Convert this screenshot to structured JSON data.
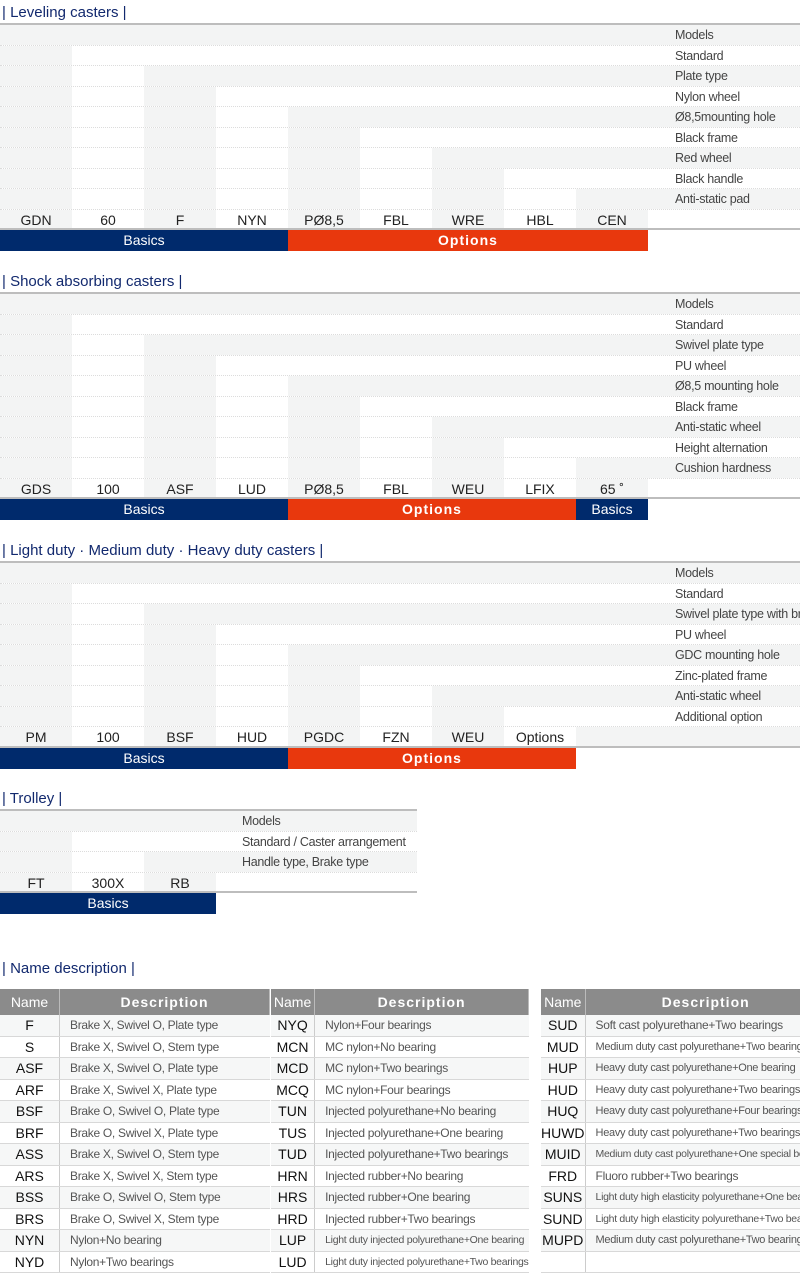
{
  "colors": {
    "basics": "#002a6c",
    "options": "#e8380d",
    "title": "#12296e",
    "shade": "#f3f4f4"
  },
  "sections": [
    {
      "title": "| Leveling casters |",
      "codes": [
        "GDN",
        "60",
        "F",
        "NYN",
        "PØ8,5",
        "FBL",
        "WRE",
        "HBL",
        "CEN"
      ],
      "labels": [
        "Models",
        "Standard",
        "Plate type",
        "Nylon wheel",
        "Ø8,5mounting hole",
        "Black frame",
        "Red wheel",
        "Black handle",
        "Anti-static pad"
      ],
      "bands": [
        {
          "label": "Basics",
          "type": "basics",
          "cols": 4
        },
        {
          "label": "Options",
          "type": "options",
          "cols": 5
        }
      ]
    },
    {
      "title": "| Shock absorbing casters |",
      "codes": [
        "GDS",
        "100",
        "ASF",
        "LUD",
        "PØ8,5",
        "FBL",
        "WEU",
        "LFIX",
        "65 ˚"
      ],
      "labels": [
        "Models",
        "Standard",
        "Swivel plate type",
        "PU wheel",
        "Ø8,5 mounting hole",
        "Black frame",
        "Anti-static wheel",
        "Height alternation",
        "Cushion hardness"
      ],
      "bands": [
        {
          "label": "Basics",
          "type": "basics",
          "cols": 4
        },
        {
          "label": "Options",
          "type": "options",
          "cols": 4
        },
        {
          "label": "Basics",
          "type": "basics",
          "cols": 1
        }
      ]
    },
    {
      "title": "| Light duty · Medium duty · Heavy duty casters |",
      "codes": [
        "PM",
        "100",
        "BSF",
        "HUD",
        "PGDC",
        "FZN",
        "WEU",
        "Options"
      ],
      "labels": [
        "Models",
        "Standard",
        "Swivel plate type with brake",
        "PU wheel",
        "GDC mounting hole",
        "Zinc-plated frame",
        "Anti-static wheel",
        "Additional option"
      ],
      "bands": [
        {
          "label": "Basics",
          "type": "basics",
          "cols": 4
        },
        {
          "label": "Options",
          "type": "options",
          "cols": 4
        }
      ]
    },
    {
      "title": "| Trolley |",
      "codes": [
        "FT",
        "300X",
        "RB"
      ],
      "labels": [
        "Models",
        "Standard / Caster arrangement",
        "Handle type, Brake type"
      ],
      "bands": [
        {
          "label": "Basics",
          "type": "basics",
          "cols": 3
        }
      ]
    }
  ],
  "name_description": {
    "title": "| Name description |",
    "header": {
      "name": "Name",
      "description": "Description"
    },
    "tables": [
      [
        [
          "F",
          "Brake X, Swivel O, Plate type"
        ],
        [
          "S",
          "Brake X, Swivel O, Stem type"
        ],
        [
          "ASF",
          "Brake X, Swivel O, Plate type"
        ],
        [
          "ARF",
          "Brake X, Swivel X, Plate type"
        ],
        [
          "BSF",
          "Brake O, Swivel O, Plate type"
        ],
        [
          "BRF",
          "Brake O, Swivel X, Plate type"
        ],
        [
          "ASS",
          "Brake X, Swivel O, Stem type"
        ],
        [
          "ARS",
          "Brake X, Swivel X, Stem type"
        ],
        [
          "BSS",
          "Brake O, Swivel O, Stem type"
        ],
        [
          "BRS",
          "Brake O, Swivel X, Stem type"
        ],
        [
          "NYN",
          "Nylon+No bearing"
        ],
        [
          "NYD",
          "Nylon+Two bearings"
        ]
      ],
      [
        [
          "NYQ",
          "Nylon+Four bearings"
        ],
        [
          "MCN",
          "MC nylon+No bearing"
        ],
        [
          "MCD",
          "MC nylon+Two bearings"
        ],
        [
          "MCQ",
          "MC nylon+Four bearings"
        ],
        [
          "TUN",
          "Injected polyurethane+No bearing"
        ],
        [
          "TUS",
          "Injected polyurethane+One bearing"
        ],
        [
          "TUD",
          "Injected polyurethane+Two bearings"
        ],
        [
          "HRN",
          "Injected rubber+No bearing"
        ],
        [
          "HRS",
          "Injected rubber+One bearing"
        ],
        [
          "HRD",
          "Injected rubber+Two bearings"
        ],
        [
          "LUP",
          "Light duty injected polyurethane+One bearing"
        ],
        [
          "LUD",
          "Light duty injected polyurethane+Two bearings"
        ]
      ],
      [
        [
          "SUD",
          "Soft cast polyurethane+Two bearings"
        ],
        [
          "MUD",
          "Medium duty cast polyurethane+Two bearings"
        ],
        [
          "HUP",
          "Heavy duty cast polyurethane+One bearing"
        ],
        [
          "HUD",
          "Heavy duty cast polyurethane+Two bearings"
        ],
        [
          "HUQ",
          "Heavy duty cast polyurethane+Four bearings"
        ],
        [
          "HUWD",
          "Heavy duty cast polyurethane+Two bearings"
        ],
        [
          "MUID",
          "Medium duty cast polyurethane+One special bearing"
        ],
        [
          "FRD",
          "Fluoro rubber+Two bearings"
        ],
        [
          "SUNS",
          "Light duty high elasticity polyurethane+One bearing"
        ],
        [
          "SUND",
          "Light duty high elasticity polyurethane+Two bearings"
        ],
        [
          "MUPD",
          "Medium duty cast polyurethane+Two bearings"
        ],
        [
          "",
          ""
        ]
      ]
    ]
  }
}
